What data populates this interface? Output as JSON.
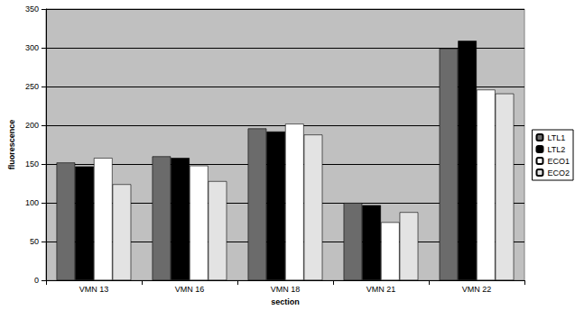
{
  "chart_data": {
    "type": "bar",
    "x_label": "section",
    "y_label": "fluorescence",
    "categories": [
      "VMN 13",
      "VMN 16",
      "VMN 18",
      "VMN 21",
      "VMN 22"
    ],
    "series": [
      {
        "name": "LTL1",
        "color": "#6b6b6b",
        "values": [
          152,
          160,
          196,
          100,
          299
        ]
      },
      {
        "name": "LTL2",
        "color": "#000000",
        "values": [
          147,
          158,
          192,
          97,
          309
        ]
      },
      {
        "name": "ECO1",
        "color": "#ffffff",
        "values": [
          158,
          148,
          202,
          75,
          246
        ]
      },
      {
        "name": "ECO2",
        "color": "#e3e3e3",
        "values": [
          124,
          128,
          188,
          88,
          241
        ]
      }
    ],
    "ylim": [
      0,
      350
    ],
    "yticks": [
      0,
      50,
      100,
      150,
      200,
      250,
      300,
      350
    ],
    "grid": true,
    "legend": "right"
  }
}
